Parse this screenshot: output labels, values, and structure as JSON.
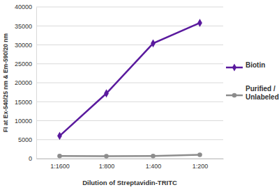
{
  "chart_data": {
    "type": "line",
    "x_label": "Dilution of Streptavidin-TRITC",
    "y_label": "FI at Ex-540/25 nm & Em-590/20 nm",
    "categories": [
      "1:1600",
      "1:800",
      "1:400",
      "1:200"
    ],
    "series": [
      {
        "name": "Biotin",
        "color": "#5a1a9e",
        "marker": "diamond",
        "line_style": "solid",
        "values": [
          6000,
          17200,
          30400,
          35800
        ]
      },
      {
        "name": "Purified / Unlabeled",
        "color": "#8c8c8c",
        "marker": "circle",
        "line_style": "solid",
        "values": [
          700,
          650,
          700,
          1000
        ]
      }
    ],
    "ylim": [
      0,
      40000
    ],
    "yticks": [
      0,
      5000,
      10000,
      15000,
      20000,
      25000,
      30000,
      35000,
      40000
    ],
    "grid": true,
    "legend": "right"
  }
}
